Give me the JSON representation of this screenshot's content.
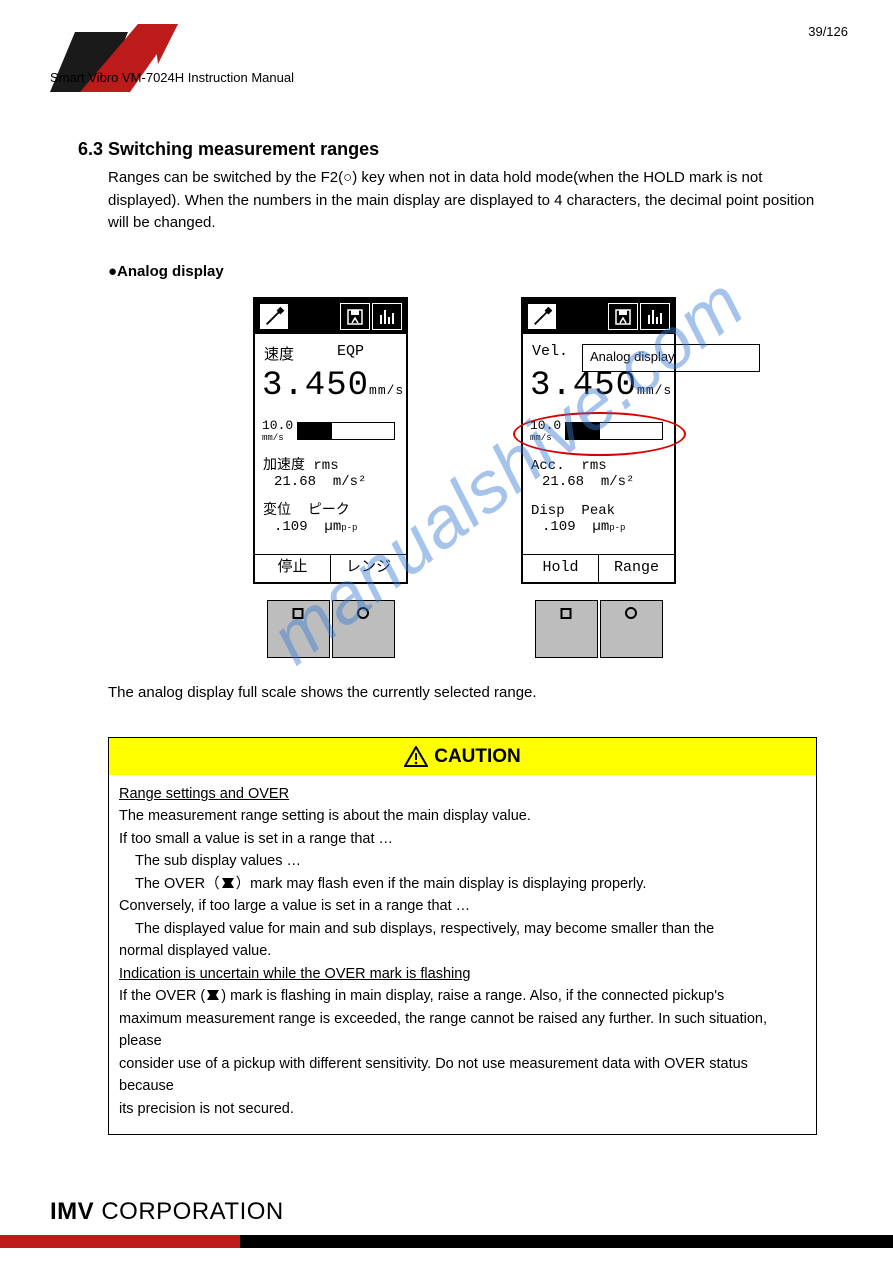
{
  "page_number": "39/126",
  "doc_title": "Smart Vibro VM-7024H Instruction Manual",
  "section_num": "6.3",
  "section_title": "Switching measurement ranges",
  "prose_1": "Ranges can be switched by the F2(○) key when not in data hold mode(when the HOLD mark is not displayed). When the numbers in the main display are displayed to 4 characters, the decimal point position will be changed.",
  "subhead": "●Analog display",
  "callout_label": "Analog display",
  "japanese": {
    "mode": "速度",
    "mode2": "EQP",
    "reading": "3.450",
    "unit": "mm/s",
    "bar_scale": "10.0",
    "bar_unit": "mm/s",
    "bar_fill_pct": 35,
    "acc_label": "加速度",
    "acc_mode": "rms",
    "acc_val": "21.68",
    "acc_unit": "m/s²",
    "disp_label": "変位",
    "disp_mode": "ピーク",
    "disp_val": ".109",
    "disp_unit": "µm",
    "disp_sub": "p-p",
    "btn_l": "停止",
    "btn_r": "レンジ"
  },
  "english": {
    "mode": "Vel.",
    "mode2": "",
    "reading": "3.450",
    "unit": "mm/s",
    "bar_scale": "10.0",
    "bar_unit": "mm/s",
    "bar_fill_pct": 35,
    "acc_label": "Acc.",
    "acc_mode": "rms",
    "acc_val": "21.68",
    "acc_unit": "m/s²",
    "disp_label": "Disp",
    "disp_mode": "Peak",
    "disp_val": ".109",
    "disp_unit": "µm",
    "disp_sub": "p-p",
    "btn_l": "Hold",
    "btn_r": "Range"
  },
  "post_text": "The analog display full scale shows the currently selected range.",
  "caution": {
    "heading": "CAUTION",
    "l1": "Range settings and OVER",
    "l2": "The measurement range setting is about the main display value.",
    "l3": "If too small a value is set in a range that …",
    "l4_a": "The sub display values …",
    "l4_b": "The OVER（",
    "l4_c": "）mark may flash even if the main display is displaying properly.",
    "l5": "Conversely, if too large a value is set in a range that …",
    "l6_a": "The displayed value for main and sub displays, respectively, may become smaller than the",
    "l6_b": "normal displayed value.",
    "l7": "Indication is uncertain while the OVER mark is flashing",
    "l8_a": "If the OVER (",
    "l8_b": ") mark is flashing in main display, raise a range. Also, if the connected pickup's",
    "l9": "maximum measurement range is exceeded, the range cannot be raised any further. In such situation, please",
    "l10": "consider use of a pickup with different sensitivity. Do not use measurement data with OVER status because",
    "l11": "its precision is not secured."
  },
  "footer": {
    "brand_bold": "IMV",
    "brand_thin": " CORPORATION"
  },
  "colors": {
    "red_corp": "#bd1a1a",
    "highlight_red": "#d80000",
    "yellow": "#ffff00",
    "grey_btn": "#bdbdbd",
    "watermark": "#3b7bd4"
  },
  "watermark_text": "manualshive.com"
}
